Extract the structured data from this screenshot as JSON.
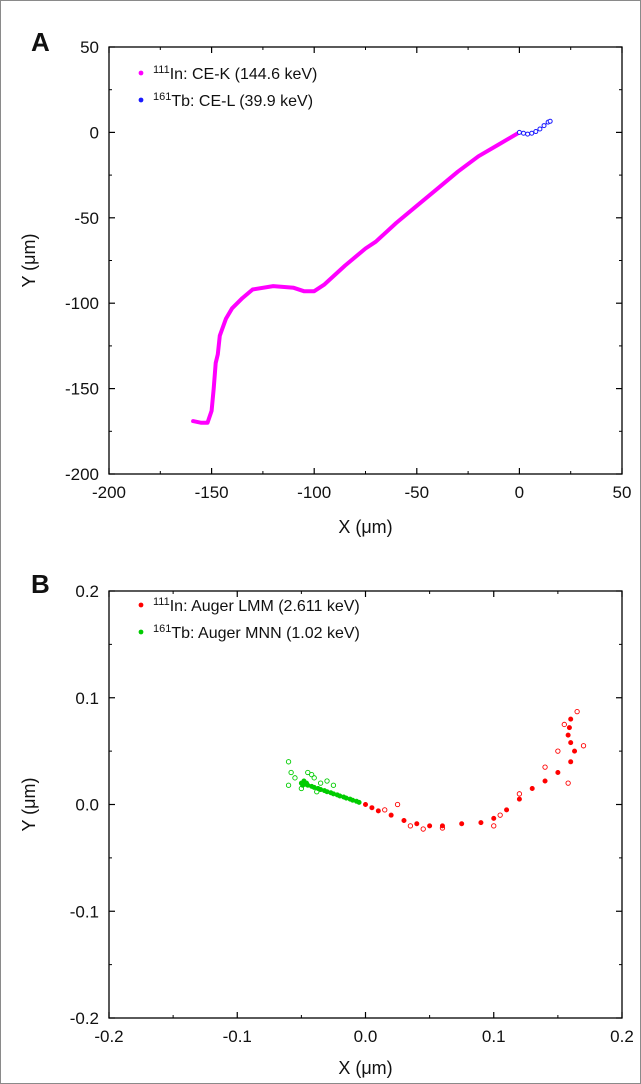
{
  "chart_data": [
    {
      "panel": "A",
      "type": "line",
      "xlabel": "X (μm)",
      "ylabel": "Y (μm)",
      "xlim": [
        -200,
        50
      ],
      "ylim": [
        -200,
        50
      ],
      "x_ticks": [
        -200,
        -150,
        -100,
        -50,
        0,
        50
      ],
      "y_ticks": [
        -200,
        -150,
        -100,
        -50,
        0,
        50
      ],
      "x_tick_labels": [
        "-200",
        "-150",
        "-100",
        "-50",
        "0",
        "50"
      ],
      "y_tick_labels": [
        "-200",
        "-150",
        "-100",
        "-50",
        "0",
        "50"
      ],
      "legend_placement": "top-left",
      "series": [
        {
          "name": "In: CE-K (144.6 keV)",
          "name_sup": "111",
          "color": "#ff00ff",
          "marker": "filled",
          "points": [
            [
              0,
              0
            ],
            [
              -10,
              -7
            ],
            [
              -20,
              -14
            ],
            [
              -30,
              -23
            ],
            [
              -40,
              -33
            ],
            [
              -50,
              -43
            ],
            [
              -60,
              -53
            ],
            [
              -70,
              -64
            ],
            [
              -75,
              -68
            ],
            [
              -85,
              -78
            ],
            [
              -95,
              -89
            ],
            [
              -100,
              -93
            ],
            [
              -105,
              -93
            ],
            [
              -110,
              -91
            ],
            [
              -120,
              -90
            ],
            [
              -130,
              -92
            ],
            [
              -135,
              -97
            ],
            [
              -140,
              -103
            ],
            [
              -143,
              -109
            ],
            [
              -146,
              -119
            ],
            [
              -147,
              -130
            ],
            [
              -148,
              -135
            ],
            [
              -149,
              -150
            ],
            [
              -150,
              -163
            ],
            [
              -152,
              -170
            ],
            [
              -155,
              -170
            ],
            [
              -159,
              -169
            ]
          ]
        },
        {
          "name": "Tb: CE-L (39.9 keV)",
          "name_sup": "161",
          "color": "#1a1aff",
          "marker": "open",
          "points": [
            [
              0,
              0
            ],
            [
              2,
              -0.5
            ],
            [
              4,
              -1
            ],
            [
              6,
              -0.5
            ],
            [
              8,
              0.5
            ],
            [
              10,
              2
            ],
            [
              12,
              4
            ],
            [
              14,
              6
            ],
            [
              15,
              6.5
            ]
          ]
        }
      ]
    },
    {
      "panel": "B",
      "type": "scatter",
      "xlabel": "X (μm)",
      "ylabel": "Y (μm)",
      "xlim": [
        -0.2,
        0.2
      ],
      "ylim": [
        -0.2,
        0.2
      ],
      "x_ticks": [
        -0.2,
        -0.1,
        0.0,
        0.1,
        0.2
      ],
      "y_ticks": [
        -0.2,
        -0.1,
        0.0,
        0.1,
        0.2
      ],
      "x_tick_labels": [
        "-0.2",
        "-0.1",
        "0.0",
        "0.1",
        "0.2"
      ],
      "y_tick_labels": [
        "-0.2",
        "-0.1",
        "0.0",
        "0.1",
        "0.2"
      ],
      "legend_placement": "top-left",
      "series": [
        {
          "name": "In: Auger LMM (2.611 keV)",
          "name_sup": "111",
          "color": "#ff0000",
          "points_filled": [
            [
              0.0,
              0.0
            ],
            [
              0.005,
              -0.003
            ],
            [
              0.01,
              -0.006
            ],
            [
              0.02,
              -0.01
            ],
            [
              0.03,
              -0.015
            ],
            [
              0.04,
              -0.018
            ],
            [
              0.05,
              -0.02
            ],
            [
              0.06,
              -0.02
            ],
            [
              0.075,
              -0.018
            ],
            [
              0.09,
              -0.017
            ],
            [
              0.1,
              -0.013
            ],
            [
              0.11,
              -0.005
            ],
            [
              0.12,
              0.005
            ],
            [
              0.13,
              0.015
            ],
            [
              0.14,
              0.022
            ],
            [
              0.15,
              0.03
            ],
            [
              0.16,
              0.04
            ],
            [
              0.163,
              0.05
            ],
            [
              0.16,
              0.058
            ],
            [
              0.158,
              0.065
            ],
            [
              0.159,
              0.072
            ],
            [
              0.16,
              0.08
            ]
          ],
          "points_open": [
            [
              0.015,
              -0.005
            ],
            [
              0.035,
              -0.02
            ],
            [
              0.045,
              -0.023
            ],
            [
              0.06,
              -0.022
            ],
            [
              0.1,
              -0.02
            ],
            [
              0.12,
              0.01
            ],
            [
              0.14,
              0.035
            ],
            [
              0.15,
              0.05
            ],
            [
              0.155,
              0.075
            ],
            [
              0.165,
              0.087
            ],
            [
              0.158,
              0.02
            ],
            [
              0.17,
              0.055
            ],
            [
              0.105,
              -0.01
            ],
            [
              0.025,
              0.0
            ]
          ]
        },
        {
          "name": "Tb: Auger MNN (1.02 keV)",
          "name_sup": "161",
          "color": "#00cc00",
          "points_filled": [
            [
              -0.05,
              0.02
            ],
            [
              -0.047,
              0.019
            ],
            [
              -0.045,
              0.018
            ],
            [
              -0.042,
              0.017
            ],
            [
              -0.04,
              0.016
            ],
            [
              -0.037,
              0.015
            ],
            [
              -0.035,
              0.014
            ],
            [
              -0.032,
              0.013
            ],
            [
              -0.03,
              0.012
            ],
            [
              -0.027,
              0.011
            ],
            [
              -0.025,
              0.01
            ],
            [
              -0.022,
              0.009
            ],
            [
              -0.02,
              0.008
            ],
            [
              -0.017,
              0.007
            ],
            [
              -0.015,
              0.006
            ],
            [
              -0.012,
              0.005
            ],
            [
              -0.01,
              0.004
            ],
            [
              -0.007,
              0.003
            ],
            [
              -0.005,
              0.002
            ],
            [
              -0.048,
              0.022
            ],
            [
              -0.049,
              0.018
            ],
            [
              -0.046,
              0.02
            ]
          ],
          "points_open": [
            [
              -0.06,
              0.04
            ],
            [
              -0.058,
              0.03
            ],
            [
              -0.055,
              0.025
            ],
            [
              -0.045,
              0.03
            ],
            [
              -0.04,
              0.025
            ],
            [
              -0.035,
              0.02
            ],
            [
              -0.03,
              0.022
            ],
            [
              -0.025,
              0.018
            ],
            [
              -0.05,
              0.015
            ],
            [
              -0.06,
              0.018
            ],
            [
              -0.042,
              0.028
            ],
            [
              -0.038,
              0.012
            ]
          ]
        }
      ]
    }
  ]
}
